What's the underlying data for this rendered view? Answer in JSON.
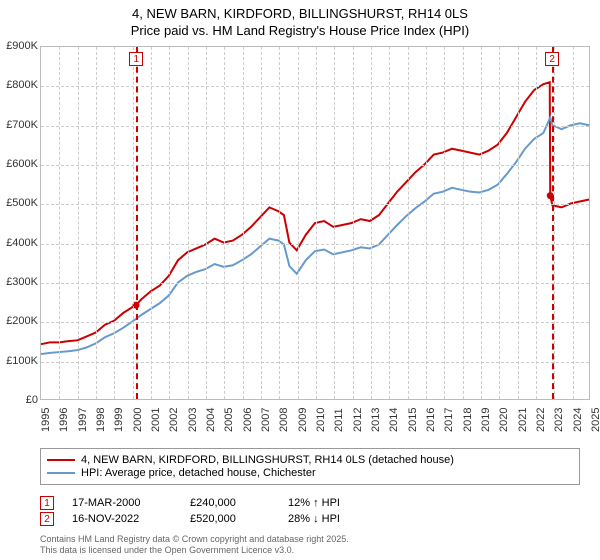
{
  "title": {
    "line1": "4, NEW BARN, KIRDFORD, BILLINGSHURST, RH14 0LS",
    "line2": "Price paid vs. HM Land Registry's House Price Index (HPI)"
  },
  "chart": {
    "type": "line",
    "background_color": "#ffffff",
    "grid_color": "#cccccc",
    "border_color": "#bbbbbb",
    "title_fontsize": 13,
    "tick_fontsize": 11,
    "ylim": [
      0,
      900000
    ],
    "ytick_step": 100000,
    "ytick_labels": [
      "£0",
      "£100K",
      "£200K",
      "£300K",
      "£400K",
      "£500K",
      "£600K",
      "£700K",
      "£800K",
      "£900K"
    ],
    "xlim": [
      1995,
      2025
    ],
    "xtick_step": 1,
    "xtick_labels": [
      "1995",
      "1996",
      "1997",
      "1998",
      "1999",
      "2000",
      "2001",
      "2002",
      "2003",
      "2004",
      "2005",
      "2006",
      "2007",
      "2008",
      "2009",
      "2010",
      "2011",
      "2012",
      "2013",
      "2014",
      "2015",
      "2016",
      "2017",
      "2018",
      "2019",
      "2020",
      "2021",
      "2022",
      "2023",
      "2024",
      "2025"
    ],
    "series": [
      {
        "label": "4, NEW BARN, KIRDFORD, BILLINGSHURST, RH14 0LS (detached house)",
        "color": "#cc0000",
        "line_width": 2,
        "data": [
          [
            1995,
            140000
          ],
          [
            1995.5,
            145000
          ],
          [
            1996,
            145000
          ],
          [
            1996.5,
            148000
          ],
          [
            1997,
            150000
          ],
          [
            1997.5,
            160000
          ],
          [
            1998,
            170000
          ],
          [
            1998.5,
            190000
          ],
          [
            1999,
            200000
          ],
          [
            1999.5,
            220000
          ],
          [
            2000,
            235000
          ],
          [
            2000.2,
            240000
          ],
          [
            2000.5,
            255000
          ],
          [
            2001,
            275000
          ],
          [
            2001.5,
            290000
          ],
          [
            2002,
            315000
          ],
          [
            2002.5,
            355000
          ],
          [
            2003,
            375000
          ],
          [
            2003.5,
            385000
          ],
          [
            2004,
            395000
          ],
          [
            2004.5,
            410000
          ],
          [
            2005,
            400000
          ],
          [
            2005.5,
            405000
          ],
          [
            2006,
            420000
          ],
          [
            2006.5,
            440000
          ],
          [
            2007,
            465000
          ],
          [
            2007.5,
            490000
          ],
          [
            2008,
            480000
          ],
          [
            2008.3,
            470000
          ],
          [
            2008.6,
            400000
          ],
          [
            2009,
            380000
          ],
          [
            2009.5,
            420000
          ],
          [
            2010,
            450000
          ],
          [
            2010.5,
            455000
          ],
          [
            2011,
            440000
          ],
          [
            2011.5,
            445000
          ],
          [
            2012,
            450000
          ],
          [
            2012.5,
            460000
          ],
          [
            2013,
            455000
          ],
          [
            2013.5,
            470000
          ],
          [
            2014,
            500000
          ],
          [
            2014.5,
            530000
          ],
          [
            2015,
            555000
          ],
          [
            2015.5,
            580000
          ],
          [
            2016,
            600000
          ],
          [
            2016.5,
            625000
          ],
          [
            2017,
            630000
          ],
          [
            2017.5,
            640000
          ],
          [
            2018,
            635000
          ],
          [
            2018.5,
            630000
          ],
          [
            2019,
            625000
          ],
          [
            2019.5,
            635000
          ],
          [
            2020,
            650000
          ],
          [
            2020.5,
            680000
          ],
          [
            2021,
            720000
          ],
          [
            2021.5,
            760000
          ],
          [
            2022,
            790000
          ],
          [
            2022.5,
            805000
          ],
          [
            2022.85,
            810000
          ],
          [
            2022.88,
            520000
          ],
          [
            2023,
            495000
          ],
          [
            2023.5,
            490000
          ],
          [
            2024,
            500000
          ],
          [
            2024.5,
            505000
          ],
          [
            2025,
            510000
          ]
        ]
      },
      {
        "label": "HPI: Average price, detached house, Chichester",
        "color": "#6699cc",
        "line_width": 2,
        "data": [
          [
            1995,
            115000
          ],
          [
            1995.5,
            118000
          ],
          [
            1996,
            120000
          ],
          [
            1996.5,
            122000
          ],
          [
            1997,
            125000
          ],
          [
            1997.5,
            132000
          ],
          [
            1998,
            142000
          ],
          [
            1998.5,
            158000
          ],
          [
            1999,
            168000
          ],
          [
            1999.5,
            182000
          ],
          [
            2000,
            198000
          ],
          [
            2000.5,
            215000
          ],
          [
            2001,
            230000
          ],
          [
            2001.5,
            245000
          ],
          [
            2002,
            265000
          ],
          [
            2002.5,
            298000
          ],
          [
            2003,
            315000
          ],
          [
            2003.5,
            325000
          ],
          [
            2004,
            332000
          ],
          [
            2004.5,
            345000
          ],
          [
            2005,
            338000
          ],
          [
            2005.5,
            342000
          ],
          [
            2006,
            355000
          ],
          [
            2006.5,
            370000
          ],
          [
            2007,
            390000
          ],
          [
            2007.5,
            410000
          ],
          [
            2008,
            405000
          ],
          [
            2008.3,
            395000
          ],
          [
            2008.6,
            340000
          ],
          [
            2009,
            320000
          ],
          [
            2009.5,
            355000
          ],
          [
            2010,
            378000
          ],
          [
            2010.5,
            382000
          ],
          [
            2011,
            370000
          ],
          [
            2011.5,
            375000
          ],
          [
            2012,
            380000
          ],
          [
            2012.5,
            388000
          ],
          [
            2013,
            385000
          ],
          [
            2013.5,
            395000
          ],
          [
            2014,
            420000
          ],
          [
            2014.5,
            445000
          ],
          [
            2015,
            468000
          ],
          [
            2015.5,
            488000
          ],
          [
            2016,
            505000
          ],
          [
            2016.5,
            525000
          ],
          [
            2017,
            530000
          ],
          [
            2017.5,
            540000
          ],
          [
            2018,
            535000
          ],
          [
            2018.5,
            530000
          ],
          [
            2019,
            528000
          ],
          [
            2019.5,
            535000
          ],
          [
            2020,
            548000
          ],
          [
            2020.5,
            575000
          ],
          [
            2021,
            605000
          ],
          [
            2021.5,
            640000
          ],
          [
            2022,
            665000
          ],
          [
            2022.5,
            680000
          ],
          [
            2022.88,
            720000
          ],
          [
            2023,
            700000
          ],
          [
            2023.5,
            690000
          ],
          [
            2024,
            700000
          ],
          [
            2024.5,
            705000
          ],
          [
            2025,
            700000
          ]
        ]
      }
    ],
    "markers": [
      {
        "num": "1",
        "x": 2000.2,
        "y_box": 870000
      },
      {
        "num": "2",
        "x": 2022.88,
        "y_box": 870000
      }
    ]
  },
  "legend": {
    "border_color": "#999999",
    "fontsize": 11
  },
  "sales": [
    {
      "num": "1",
      "date": "17-MAR-2000",
      "price": "£240,000",
      "diff": "12% ↑ HPI"
    },
    {
      "num": "2",
      "date": "16-NOV-2022",
      "price": "£520,000",
      "diff": "28% ↓ HPI"
    }
  ],
  "footer": {
    "line1": "Contains HM Land Registry data © Crown copyright and database right 2025.",
    "line2": "This data is licensed under the Open Government Licence v3.0."
  }
}
